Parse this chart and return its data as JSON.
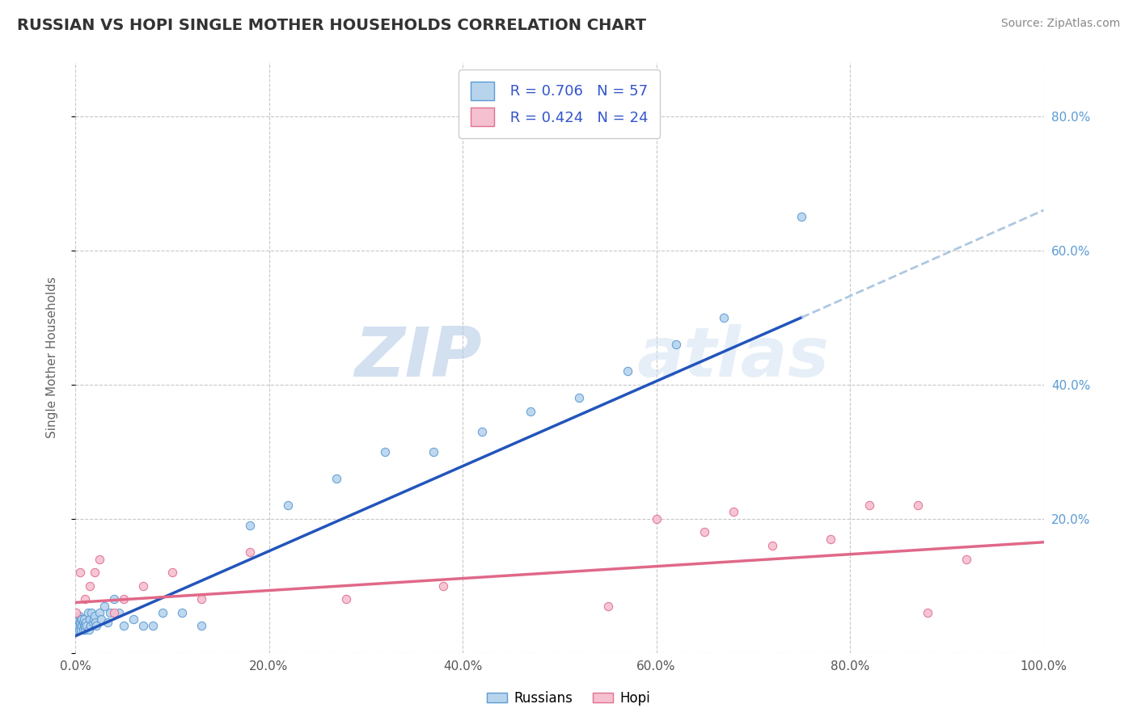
{
  "title": "RUSSIAN VS HOPI SINGLE MOTHER HOUSEHOLDS CORRELATION CHART",
  "source": "Source: ZipAtlas.com",
  "ylabel": "Single Mother Households",
  "xlim": [
    0,
    1.0
  ],
  "ylim": [
    0,
    0.88
  ],
  "xticks": [
    0.0,
    0.2,
    0.4,
    0.6,
    0.8,
    1.0
  ],
  "yticks": [
    0.0,
    0.2,
    0.4,
    0.6,
    0.8
  ],
  "xtick_labels": [
    "0.0%",
    "20.0%",
    "40.0%",
    "60.0%",
    "80.0%",
    "100.0%"
  ],
  "ytick_labels_right": [
    "",
    "20.0%",
    "40.0%",
    "60.0%",
    "80.0%"
  ],
  "russian_fill": "#b8d4ed",
  "russian_edge": "#5b9bd5",
  "hopi_fill": "#f5c0d0",
  "hopi_edge": "#e07090",
  "russian_line_color": "#2255bb",
  "hopi_line_color": "#e06888",
  "dashed_line_color": "#aec8e0",
  "background_color": "#ffffff",
  "grid_color": "#c8c8c8",
  "legend_color": "#3355cc",
  "watermark_text": "ZIPatlas",
  "watermark_color": "#d0e4f4",
  "title_color": "#333333",
  "source_color": "#888888",
  "russians_label": "Russians",
  "hopi_label": "Hopi",
  "legend_r1": "R = 0.706",
  "legend_n1": "N = 57",
  "legend_r2": "R = 0.424",
  "legend_n2": "N = 24",
  "russian_x": [
    0.001,
    0.002,
    0.002,
    0.003,
    0.003,
    0.004,
    0.004,
    0.005,
    0.005,
    0.006,
    0.006,
    0.007,
    0.007,
    0.008,
    0.008,
    0.009,
    0.009,
    0.01,
    0.01,
    0.011,
    0.012,
    0.013,
    0.014,
    0.015,
    0.016,
    0.017,
    0.018,
    0.019,
    0.02,
    0.021,
    0.022,
    0.025,
    0.027,
    0.03,
    0.033,
    0.036,
    0.04,
    0.045,
    0.05,
    0.06,
    0.07,
    0.08,
    0.09,
    0.11,
    0.13,
    0.18,
    0.22,
    0.27,
    0.32,
    0.37,
    0.42,
    0.47,
    0.52,
    0.57,
    0.62,
    0.67,
    0.75
  ],
  "russian_y": [
    0.04,
    0.035,
    0.045,
    0.04,
    0.05,
    0.035,
    0.055,
    0.04,
    0.045,
    0.035,
    0.05,
    0.04,
    0.05,
    0.035,
    0.045,
    0.04,
    0.05,
    0.035,
    0.04,
    0.045,
    0.04,
    0.06,
    0.035,
    0.05,
    0.04,
    0.06,
    0.045,
    0.05,
    0.055,
    0.045,
    0.04,
    0.06,
    0.05,
    0.07,
    0.045,
    0.06,
    0.08,
    0.06,
    0.04,
    0.05,
    0.04,
    0.04,
    0.06,
    0.06,
    0.04,
    0.19,
    0.22,
    0.26,
    0.3,
    0.3,
    0.33,
    0.36,
    0.38,
    0.42,
    0.46,
    0.5,
    0.65
  ],
  "hopi_x": [
    0.001,
    0.005,
    0.01,
    0.015,
    0.02,
    0.025,
    0.04,
    0.05,
    0.07,
    0.1,
    0.13,
    0.18,
    0.28,
    0.38,
    0.55,
    0.6,
    0.65,
    0.68,
    0.72,
    0.78,
    0.82,
    0.87,
    0.88,
    0.92
  ],
  "hopi_y": [
    0.06,
    0.12,
    0.08,
    0.1,
    0.12,
    0.14,
    0.06,
    0.08,
    0.1,
    0.12,
    0.08,
    0.15,
    0.08,
    0.1,
    0.07,
    0.2,
    0.18,
    0.21,
    0.16,
    0.17,
    0.22,
    0.22,
    0.06,
    0.14
  ],
  "russian_line_x0": 0.0,
  "russian_line_y0": 0.025,
  "russian_line_x1": 0.75,
  "russian_line_y1": 0.5,
  "dash_line_x0": 0.75,
  "dash_line_y0": 0.5,
  "dash_line_x1": 1.0,
  "dash_line_y1": 0.66,
  "hopi_line_x0": 0.0,
  "hopi_line_y0": 0.075,
  "hopi_line_x1": 1.0,
  "hopi_line_y1": 0.165
}
